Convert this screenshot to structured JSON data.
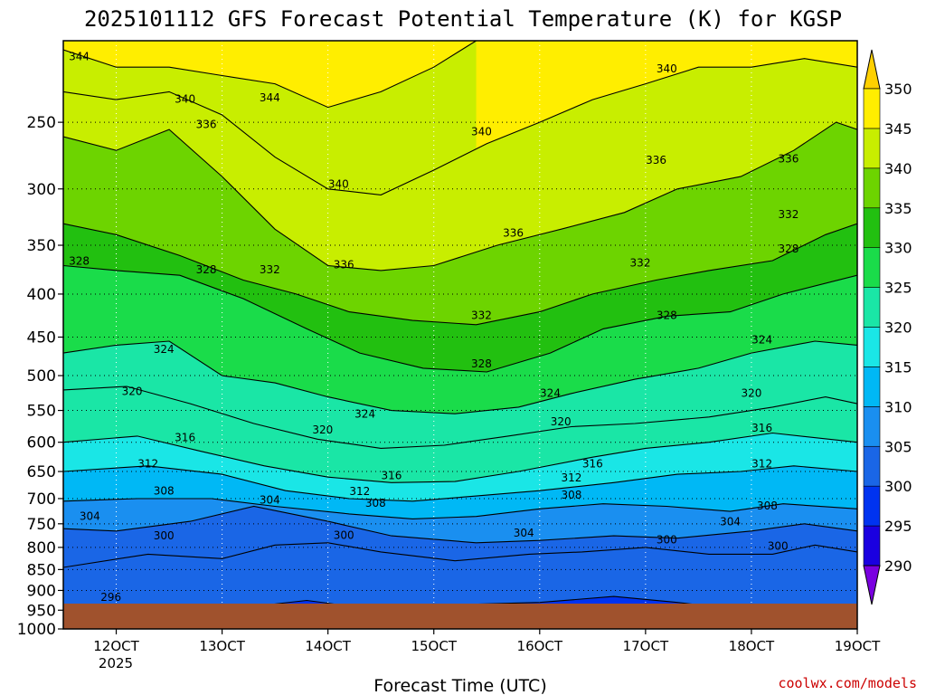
{
  "chart_data": {
    "type": "heatmap",
    "title": "2025101112 GFS Forecast Potential Temperature (K) for KGSP",
    "xlabel": "Forecast Time (UTC)",
    "ylabel": "",
    "credit": "coolwx.com/models",
    "x_ticks": [
      "12OCT",
      "13OCT",
      "14OCT",
      "15OCT",
      "16OCT",
      "17OCT",
      "18OCT",
      "19OCT"
    ],
    "x_year_label": "2025",
    "y_ticks": [
      250,
      300,
      350,
      400,
      450,
      500,
      550,
      600,
      650,
      700,
      750,
      800,
      850,
      900,
      950,
      1000
    ],
    "ylim": [
      1000,
      200
    ],
    "colorbar_ticks": [
      290,
      295,
      300,
      305,
      310,
      315,
      320,
      325,
      330,
      335,
      340,
      345,
      350
    ],
    "colorbar_colors": [
      "#7a00e0",
      "#1a00e0",
      "#0033f0",
      "#1a66e6",
      "#1a8ff0",
      "#00b8f5",
      "#1ae6e6",
      "#1ae6a6",
      "#1adc4a",
      "#22c010",
      "#6dd400",
      "#c8ee00",
      "#ffee00",
      "#ffd000"
    ],
    "grid": true,
    "ground_color": "#a0522d",
    "contours": [
      {
        "level": 296,
        "x": [
          12.3,
          12.7,
          13.3,
          13.8,
          14.5,
          15.3,
          16.0,
          16.7,
          17.3,
          17.8,
          18.3,
          18.8,
          19.0
        ],
        "p": [
          945,
          935,
          940,
          925,
          950,
          935,
          930,
          915,
          930,
          945,
          940,
          935,
          945
        ]
      },
      {
        "level": 300,
        "x": [
          11.5,
          12.3,
          13.0,
          13.5,
          14.0,
          14.5,
          15.2,
          15.9,
          16.4,
          17.0,
          17.6,
          18.2,
          18.6,
          19.0
        ],
        "p": [
          845,
          815,
          825,
          795,
          790,
          810,
          830,
          815,
          810,
          800,
          815,
          815,
          795,
          810
        ]
      },
      {
        "level": 304,
        "x": [
          11.5,
          12.0,
          12.7,
          13.3,
          14.0,
          14.6,
          15.4,
          16.0,
          16.7,
          17.3,
          18.0,
          18.5,
          19.0
        ],
        "p": [
          760,
          765,
          745,
          715,
          745,
          775,
          790,
          785,
          775,
          780,
          765,
          750,
          765
        ]
      },
      {
        "level": 308,
        "x": [
          11.5,
          12.2,
          12.9,
          13.5,
          14.2,
          14.8,
          15.4,
          16.0,
          16.6,
          17.2,
          17.8,
          18.3,
          19.0
        ],
        "p": [
          705,
          700,
          700,
          715,
          730,
          740,
          735,
          720,
          710,
          715,
          725,
          710,
          720
        ]
      },
      {
        "level": 312,
        "x": [
          11.5,
          12.3,
          13.0,
          13.6,
          14.2,
          14.8,
          15.4,
          16.0,
          16.7,
          17.3,
          17.9,
          18.4,
          19.0
        ],
        "p": [
          650,
          640,
          655,
          685,
          700,
          705,
          695,
          685,
          670,
          655,
          650,
          640,
          650
        ]
      },
      {
        "level": 316,
        "x": [
          11.5,
          12.2,
          12.8,
          13.4,
          14.0,
          14.6,
          15.2,
          15.8,
          16.5,
          17.0,
          17.6,
          18.2,
          19.0
        ],
        "p": [
          600,
          590,
          615,
          640,
          660,
          670,
          668,
          650,
          625,
          610,
          600,
          585,
          600
        ]
      },
      {
        "level": 320,
        "x": [
          11.5,
          12.1,
          12.7,
          13.3,
          13.9,
          14.5,
          15.1,
          15.7,
          16.3,
          16.9,
          17.6,
          18.2,
          18.7,
          19.0
        ],
        "p": [
          520,
          515,
          540,
          570,
          595,
          610,
          605,
          590,
          575,
          570,
          560,
          545,
          530,
          540
        ]
      },
      {
        "level": 324,
        "x": [
          11.5,
          12.0,
          12.5,
          13.0,
          13.5,
          14.0,
          14.6,
          15.2,
          15.8,
          16.3,
          16.9,
          17.5,
          18.0,
          18.6,
          19.0
        ],
        "p": [
          470,
          460,
          455,
          500,
          510,
          530,
          550,
          555,
          545,
          525,
          505,
          490,
          470,
          455,
          460
        ]
      },
      {
        "level": 328,
        "x": [
          11.5,
          12.0,
          12.6,
          13.2,
          13.8,
          14.3,
          14.9,
          15.5,
          16.1,
          16.6,
          17.2,
          17.8,
          18.3,
          19.0
        ],
        "p": [
          370,
          375,
          380,
          405,
          440,
          470,
          490,
          495,
          470,
          440,
          425,
          420,
          400,
          380
        ]
      },
      {
        "level": 332,
        "x": [
          11.5,
          12.0,
          12.6,
          13.2,
          13.7,
          14.2,
          14.8,
          15.4,
          16.0,
          16.5,
          17.1,
          17.6,
          18.2,
          18.7,
          19.0
        ],
        "p": [
          330,
          340,
          360,
          385,
          400,
          420,
          430,
          435,
          420,
          400,
          385,
          375,
          365,
          340,
          330
        ]
      },
      {
        "level": 336,
        "x": [
          11.5,
          12.0,
          12.5,
          13.0,
          13.5,
          14.0,
          14.5,
          15.0,
          15.6,
          16.2,
          16.8,
          17.3,
          17.9,
          18.4,
          18.8,
          19.0
        ],
        "p": [
          260,
          270,
          255,
          290,
          335,
          370,
          375,
          370,
          350,
          335,
          320,
          300,
          290,
          270,
          250,
          255
        ]
      },
      {
        "level": 340,
        "x": [
          11.5,
          12.0,
          12.5,
          13.0,
          13.5,
          14.0,
          14.5,
          15.0,
          15.5,
          16.0,
          16.5,
          17.0,
          17.5,
          18.0,
          18.5,
          19.0
        ],
        "p": [
          230,
          235,
          230,
          245,
          275,
          300,
          305,
          285,
          265,
          250,
          235,
          225,
          215,
          215,
          210,
          215
        ]
      },
      {
        "level": 344,
        "x": [
          11.5,
          12.0,
          12.5,
          13.0,
          13.5,
          14.0,
          14.5,
          15.0,
          15.4
        ],
        "p": [
          205,
          215,
          215,
          220,
          225,
          240,
          230,
          215,
          200
        ]
      }
    ],
    "contour_labels": [
      {
        "text": "344",
        "x": 11.65,
        "p": 211
      },
      {
        "text": "340",
        "x": 12.65,
        "p": 237
      },
      {
        "text": "344",
        "x": 13.45,
        "p": 236
      },
      {
        "text": "336",
        "x": 12.85,
        "p": 254
      },
      {
        "text": "340",
        "x": 15.45,
        "p": 259
      },
      {
        "text": "340",
        "x": 17.2,
        "p": 218
      },
      {
        "text": "336",
        "x": 17.1,
        "p": 280
      },
      {
        "text": "336",
        "x": 18.35,
        "p": 279
      },
      {
        "text": "340",
        "x": 14.1,
        "p": 299
      },
      {
        "text": "336",
        "x": 15.75,
        "p": 342
      },
      {
        "text": "332",
        "x": 18.35,
        "p": 325
      },
      {
        "text": "328",
        "x": 11.65,
        "p": 369
      },
      {
        "text": "328",
        "x": 12.85,
        "p": 378
      },
      {
        "text": "332",
        "x": 13.45,
        "p": 378
      },
      {
        "text": "336",
        "x": 14.15,
        "p": 373
      },
      {
        "text": "328",
        "x": 18.35,
        "p": 357
      },
      {
        "text": "332",
        "x": 16.95,
        "p": 371
      },
      {
        "text": "332",
        "x": 15.45,
        "p": 428
      },
      {
        "text": "328",
        "x": 17.2,
        "p": 428
      },
      {
        "text": "324",
        "x": 12.45,
        "p": 470
      },
      {
        "text": "324",
        "x": 18.1,
        "p": 458
      },
      {
        "text": "328",
        "x": 15.45,
        "p": 489
      },
      {
        "text": "320",
        "x": 12.15,
        "p": 527
      },
      {
        "text": "324",
        "x": 16.1,
        "p": 530
      },
      {
        "text": "320",
        "x": 18.0,
        "p": 530
      },
      {
        "text": "324",
        "x": 14.35,
        "p": 561
      },
      {
        "text": "320",
        "x": 16.2,
        "p": 573
      },
      {
        "text": "320",
        "x": 13.95,
        "p": 586
      },
      {
        "text": "316",
        "x": 18.1,
        "p": 583
      },
      {
        "text": "316",
        "x": 12.65,
        "p": 598
      },
      {
        "text": "312",
        "x": 12.3,
        "p": 643
      },
      {
        "text": "316",
        "x": 16.5,
        "p": 643
      },
      {
        "text": "312",
        "x": 18.1,
        "p": 643
      },
      {
        "text": "316",
        "x": 14.6,
        "p": 664
      },
      {
        "text": "312",
        "x": 16.3,
        "p": 668
      },
      {
        "text": "312",
        "x": 14.3,
        "p": 693
      },
      {
        "text": "308",
        "x": 12.45,
        "p": 692
      },
      {
        "text": "308",
        "x": 16.3,
        "p": 700
      },
      {
        "text": "304",
        "x": 13.45,
        "p": 710
      },
      {
        "text": "308",
        "x": 14.45,
        "p": 716
      },
      {
        "text": "308",
        "x": 18.15,
        "p": 721
      },
      {
        "text": "304",
        "x": 11.75,
        "p": 742
      },
      {
        "text": "304",
        "x": 17.8,
        "p": 753
      },
      {
        "text": "304",
        "x": 15.85,
        "p": 777
      },
      {
        "text": "300",
        "x": 12.45,
        "p": 783
      },
      {
        "text": "300",
        "x": 14.15,
        "p": 782
      },
      {
        "text": "300",
        "x": 17.2,
        "p": 791
      },
      {
        "text": "300",
        "x": 18.25,
        "p": 805
      },
      {
        "text": "296",
        "x": 11.95,
        "p": 926
      },
      {
        "text": "296",
        "x": 16.95,
        "p": 965
      }
    ]
  }
}
